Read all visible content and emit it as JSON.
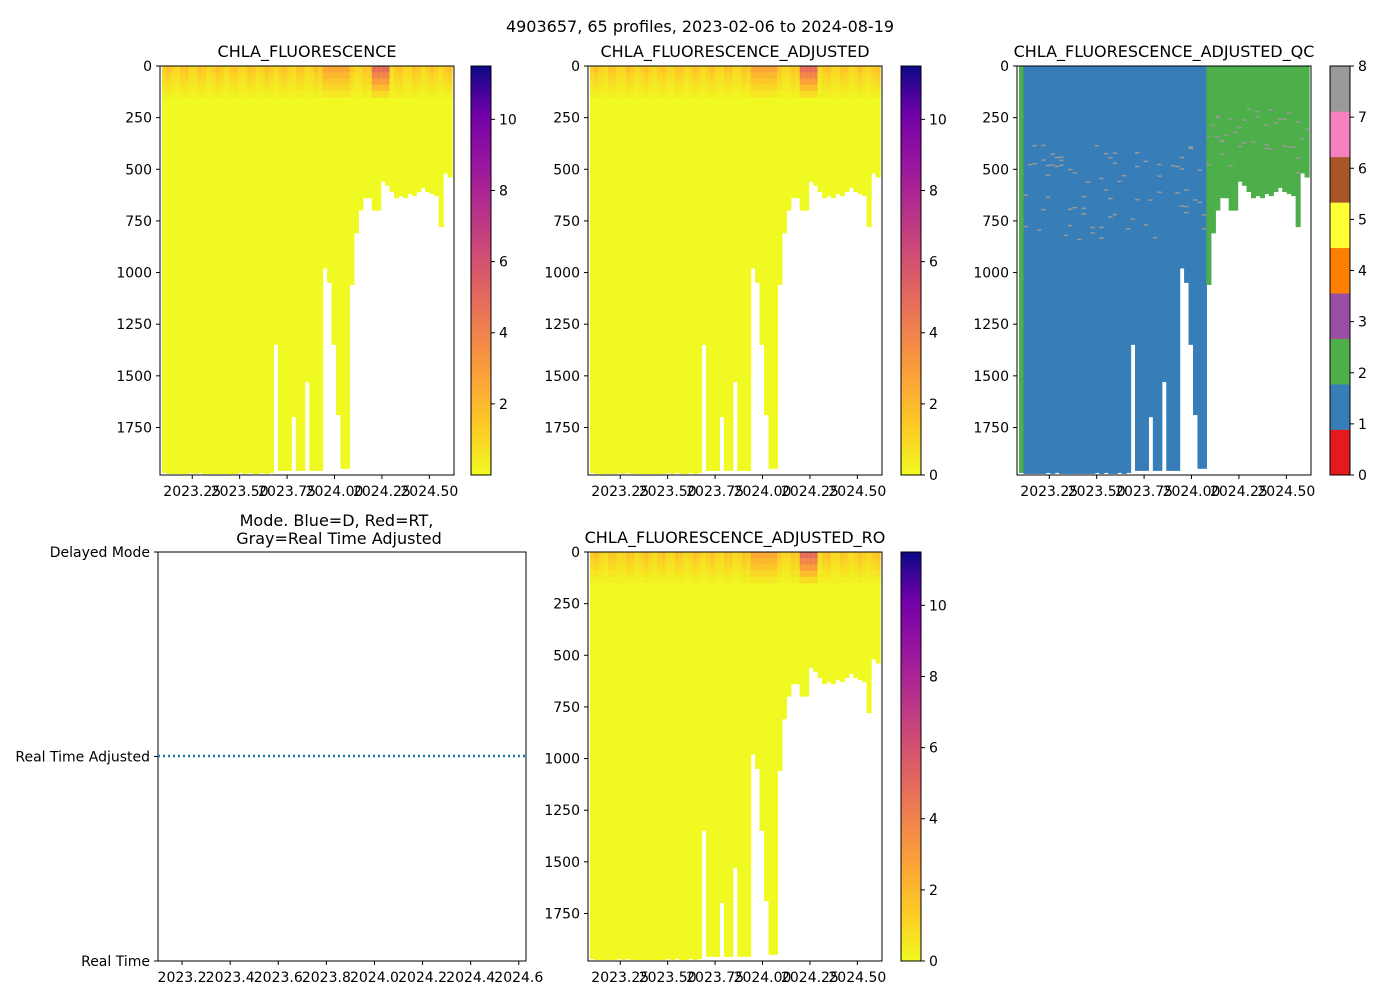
{
  "figure": {
    "title": "4903657, 65 profiles, 2023-02-06 to 2024-08-19"
  },
  "chart_data": [
    {
      "type": "heatmap",
      "title": "CHLA_FLUORESCENCE",
      "ylim": [
        1980,
        0
      ],
      "xlim": [
        2023.08,
        2024.63
      ],
      "yticks": [
        "0",
        "250",
        "500",
        "750",
        "1000",
        "1250",
        "1500",
        "1750"
      ],
      "xticks": [
        "2023.25",
        "2023.50",
        "2023.75",
        "2024.00",
        "2024.25",
        "2024.50"
      ],
      "colorbar": {
        "range": [
          0,
          11.5
        ],
        "ticks": [
          "2",
          "4",
          "6",
          "8",
          "10"
        ],
        "colormap": "plasma_r"
      },
      "profile_max_depth_m": [
        1970,
        1975,
        1975,
        1975,
        1975,
        1975,
        1970,
        1975,
        1970,
        1975,
        1975,
        1975,
        1975,
        1975,
        1975,
        1975,
        1975,
        1970,
        1975,
        1970,
        1975,
        1975,
        1970,
        1975,
        1970,
        1350,
        1960,
        1960,
        1960,
        1700,
        1960,
        1960,
        1530,
        1960,
        1960,
        1960,
        980,
        1050,
        1350,
        1690,
        1950,
        1950,
        1060,
        810,
        700,
        640,
        640,
        700,
        700,
        560,
        580,
        610,
        640,
        630,
        640,
        620,
        630,
        610,
        590,
        610,
        620,
        630,
        780,
        520,
        540
      ]
    },
    {
      "type": "heatmap",
      "title": "CHLA_FLUORESCENCE_ADJUSTED",
      "ylim": [
        1980,
        0
      ],
      "xlim": [
        2023.08,
        2024.63
      ],
      "yticks": [
        "0",
        "250",
        "500",
        "750",
        "1000",
        "1250",
        "1500",
        "1750"
      ],
      "xticks": [
        "2023.25",
        "2023.50",
        "2023.75",
        "2024.00",
        "2024.25",
        "2024.50"
      ],
      "colorbar": {
        "range": [
          0,
          11.5
        ],
        "ticks": [
          "0",
          "2",
          "4",
          "6",
          "8",
          "10"
        ],
        "colormap": "plasma_r"
      }
    },
    {
      "type": "heatmap",
      "title": "CHLA_FLUORESCENCE_ADJUSTED_QC",
      "ylim": [
        1980,
        0
      ],
      "xlim": [
        2023.08,
        2024.63
      ],
      "yticks": [
        "0",
        "250",
        "500",
        "750",
        "1000",
        "1250",
        "1500",
        "1750"
      ],
      "xticks": [
        "2023.25",
        "2023.50",
        "2023.75",
        "2024.00",
        "2024.25",
        "2024.50"
      ],
      "colorbar": {
        "range": [
          0,
          8
        ],
        "ticks": [
          "0",
          "1",
          "2",
          "3",
          "4",
          "5",
          "6",
          "7",
          "8"
        ],
        "classes": [
          {
            "flag": 0,
            "color": "#e41a1c"
          },
          {
            "flag": 1,
            "color": "#377eb8"
          },
          {
            "flag": 2,
            "color": "#4daf4a"
          },
          {
            "flag": 3,
            "color": "#984ea3"
          },
          {
            "flag": 4,
            "color": "#ff7f00"
          },
          {
            "flag": 5,
            "color": "#ffff33"
          },
          {
            "flag": 6,
            "color": "#a65628"
          },
          {
            "flag": 7,
            "color": "#f781bf"
          },
          {
            "flag": 8,
            "color": "#999999"
          }
        ]
      },
      "qc_flag_by_profile": "first profile = 2; profiles before 2024.08 mostly 1; from 2024.08 onward = 2; scattered isolated 8 values"
    },
    {
      "type": "line",
      "title": "Mode. Blue=D, Red=RT,\nGray=Real Time Adjusted",
      "yticks": [
        "Delayed Mode",
        "Real Time Adjusted",
        "Real Time"
      ],
      "xticks": [
        "2023.2",
        "2023.4",
        "2023.6",
        "2023.8",
        "2024.0",
        "2024.2",
        "2024.4",
        "2024.6"
      ],
      "xlim": [
        2023.1,
        2024.63
      ],
      "series": [
        {
          "name": "data mode",
          "value": "Real Time Adjusted",
          "style": "dotted",
          "color": "#1f77b4"
        }
      ]
    },
    {
      "type": "heatmap",
      "title": "CHLA_FLUORESCENCE_ADJUSTED_RO",
      "ylim": [
        1980,
        0
      ],
      "xlim": [
        2023.08,
        2024.63
      ],
      "yticks": [
        "0",
        "250",
        "500",
        "750",
        "1000",
        "1250",
        "1500",
        "1750"
      ],
      "xticks": [
        "2023.25",
        "2023.50",
        "2023.75",
        "2024.00",
        "2024.25",
        "2024.50"
      ],
      "colorbar": {
        "range": [
          0,
          11.5
        ],
        "ticks": [
          "0",
          "2",
          "4",
          "6",
          "8",
          "10"
        ],
        "colormap": "plasma_r"
      }
    }
  ]
}
